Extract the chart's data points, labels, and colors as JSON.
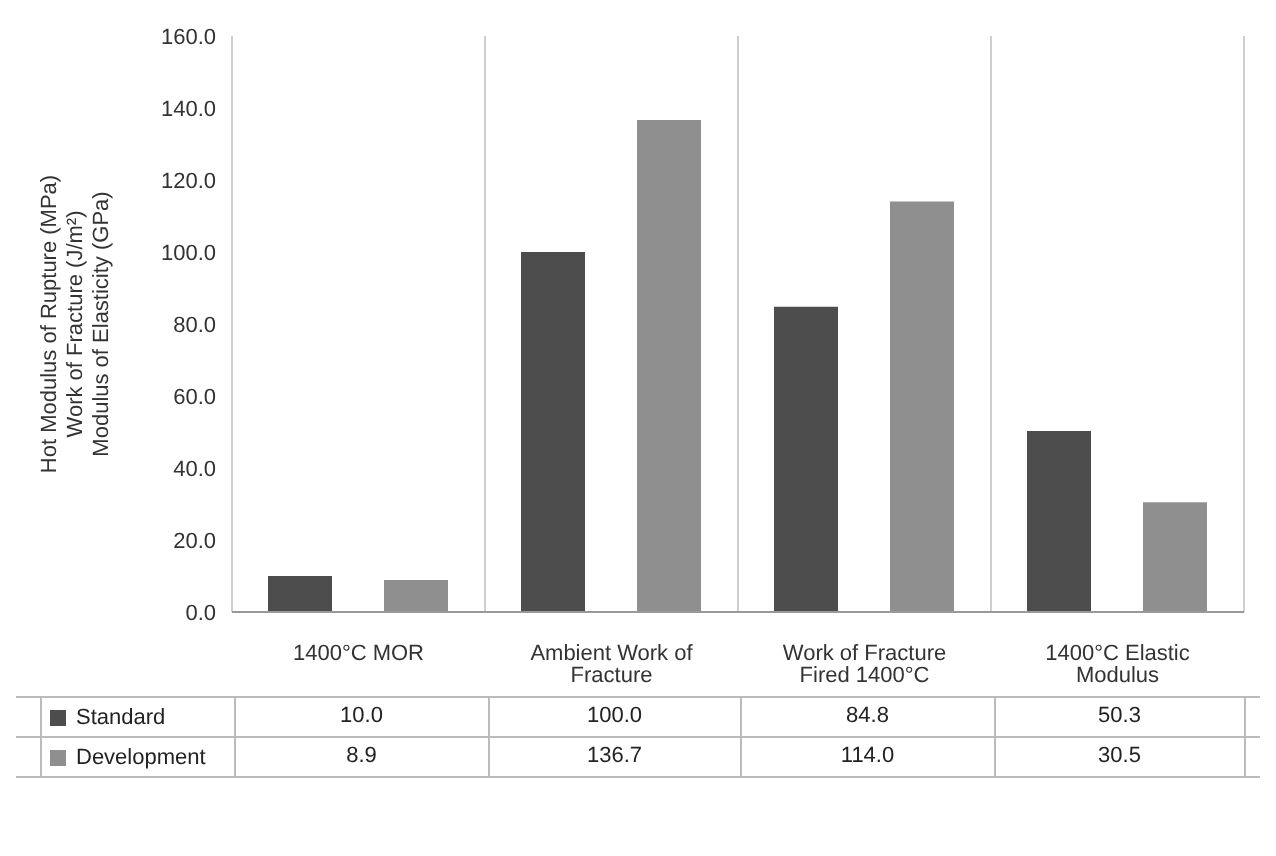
{
  "chart_data": {
    "type": "bar",
    "ylabel": "Hot Modulus of Rupture (MPa)\nWork of Fracture (J/m²)\nModulus of Elasticity (GPa)",
    "categories": [
      "1400°C MOR",
      "Ambient Work of Fracture",
      "Work of Fracture Fired 1400°C",
      "1400°C Elastic Modulus"
    ],
    "series": [
      {
        "name": "Standard",
        "color": "#4d4d4d",
        "values": [
          10.0,
          100.0,
          84.8,
          50.3
        ],
        "value_labels": [
          "10.0",
          "100.0",
          "84.8",
          "50.3"
        ]
      },
      {
        "name": "Development",
        "color": "#8f8f8f",
        "values": [
          8.9,
          136.7,
          114.0,
          30.5
        ],
        "value_labels": [
          "8.9",
          "136.7",
          "114.0",
          "30.5"
        ]
      }
    ],
    "ylim": [
      0,
      160
    ],
    "yticks": [
      {
        "value": 0,
        "label": "0.0"
      },
      {
        "value": 20,
        "label": "20.0"
      },
      {
        "value": 40,
        "label": "40.0"
      },
      {
        "value": 60,
        "label": "60.0"
      },
      {
        "value": 80,
        "label": "80.0"
      },
      {
        "value": 100,
        "label": "100.0"
      },
      {
        "value": 120,
        "label": "120.0"
      },
      {
        "value": 140,
        "label": "140.0"
      },
      {
        "value": 160,
        "label": "160.0"
      }
    ],
    "grid": "x",
    "legend": "bottom"
  }
}
